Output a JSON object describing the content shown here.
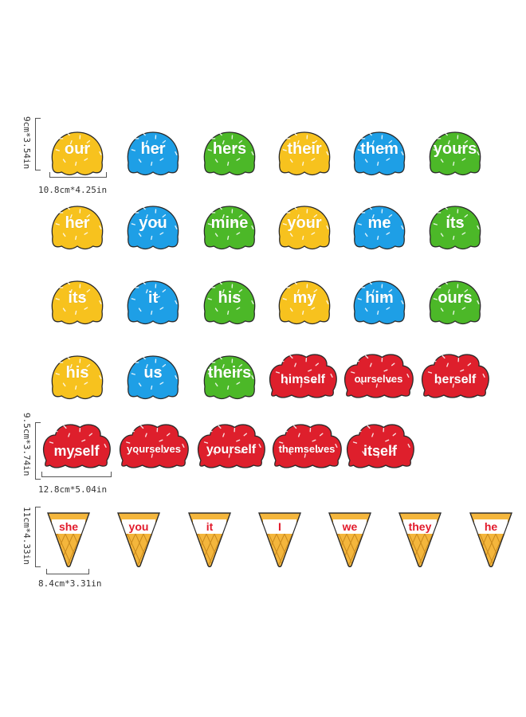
{
  "colors": {
    "yellow": "#f7c21e",
    "blue": "#1e9fe6",
    "green": "#4cb828",
    "red": "#de1f2c",
    "cone": "#f4b63c",
    "cone_grid": "#c98a1e"
  },
  "dimensions": {
    "small_height": "9cm*3.54in",
    "small_width": "10.8cm*4.25in",
    "large_height": "9.5cm*3.74in",
    "large_width": "12.8cm*5.04in",
    "cone_height": "11cm*4.33in",
    "cone_width": "8.4cm*3.31in"
  },
  "small_scoops": [
    {
      "word": "our",
      "color": "yellow"
    },
    {
      "word": "her",
      "color": "blue"
    },
    {
      "word": "hers",
      "color": "green"
    },
    {
      "word": "their",
      "color": "yellow"
    },
    {
      "word": "them",
      "color": "blue"
    },
    {
      "word": "yours",
      "color": "green"
    },
    {
      "word": "her",
      "color": "yellow"
    },
    {
      "word": "you",
      "color": "blue"
    },
    {
      "word": "mine",
      "color": "green"
    },
    {
      "word": "your",
      "color": "yellow"
    },
    {
      "word": "me",
      "color": "blue"
    },
    {
      "word": "its",
      "color": "green"
    },
    {
      "word": "its",
      "color": "yellow"
    },
    {
      "word": "it",
      "color": "blue"
    },
    {
      "word": "his",
      "color": "green"
    },
    {
      "word": "my",
      "color": "yellow"
    },
    {
      "word": "him",
      "color": "blue"
    },
    {
      "word": "ours",
      "color": "green"
    },
    {
      "word": "his",
      "color": "yellow"
    },
    {
      "word": "us",
      "color": "blue"
    },
    {
      "word": "theirs",
      "color": "green"
    }
  ],
  "large_scoops": [
    {
      "word": "himself",
      "color": "red"
    },
    {
      "word": "ourselves",
      "color": "red"
    },
    {
      "word": "herself",
      "color": "red"
    },
    {
      "word": "myself",
      "color": "red"
    },
    {
      "word": "yourselves",
      "color": "red"
    },
    {
      "word": "yourself",
      "color": "red"
    },
    {
      "word": "themselves",
      "color": "red"
    },
    {
      "word": "itself",
      "color": "red"
    }
  ],
  "cones": [
    {
      "word": "she"
    },
    {
      "word": "you"
    },
    {
      "word": "it"
    },
    {
      "word": "I"
    },
    {
      "word": "we"
    },
    {
      "word": "they"
    },
    {
      "word": "he"
    }
  ]
}
